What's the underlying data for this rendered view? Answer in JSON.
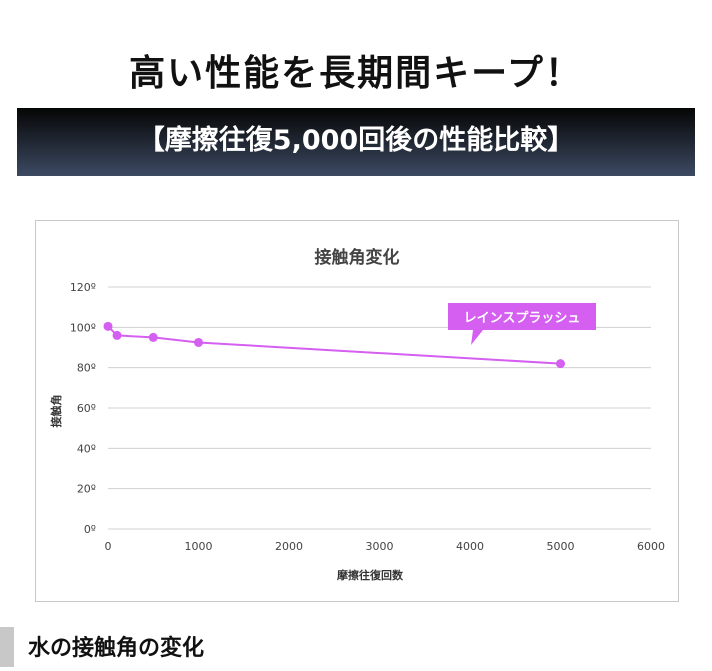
{
  "title": "高い性能を長期間キープ！",
  "banner": "【摩擦往復5,000回後の性能比較】",
  "footer_heading": "水の接触角の変化",
  "chart_data": {
    "type": "line",
    "title": "接触角変化",
    "xlabel": "摩擦往復回数",
    "ylabel": "接触角",
    "xlim": [
      0,
      6000
    ],
    "ylim": [
      0,
      120
    ],
    "xticks": [
      "0",
      "1000",
      "2000",
      "3000",
      "4000",
      "5000",
      "6000"
    ],
    "yticks": [
      "0º",
      "20º",
      "40º",
      "60º",
      "80º",
      "100º",
      "120º"
    ],
    "grid": true,
    "series": [
      {
        "name": "レインスプラッシュ",
        "color": "#d45ff0",
        "x": [
          0,
          100,
          500,
          1000,
          5000
        ],
        "y": [
          100.5,
          96,
          95,
          92.5,
          82
        ]
      }
    ]
  }
}
